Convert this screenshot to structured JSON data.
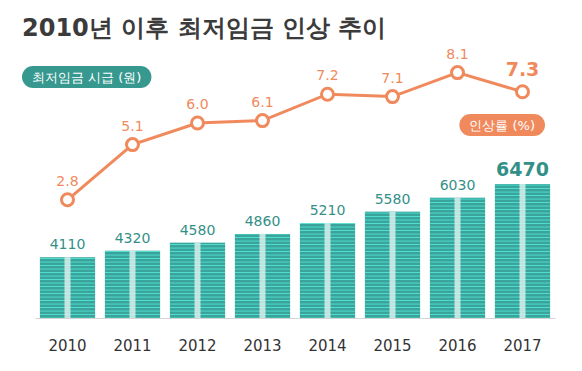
{
  "chart_data": {
    "type": "bar",
    "title": "2010년 이후 최저임금 인상 추이",
    "categories": [
      "2010",
      "2011",
      "2012",
      "2013",
      "2014",
      "2015",
      "2016",
      "2017"
    ],
    "series": [
      {
        "name": "최저임금 시급 (원)",
        "type": "bar",
        "color": "#3aa39a",
        "values": [
          4110,
          4320,
          4580,
          4860,
          5210,
          5580,
          6030,
          6470
        ]
      },
      {
        "name": "인상률 (%)",
        "type": "line",
        "color": "#f08a5d",
        "axis": "y2",
        "marker": "circle",
        "values": [
          2.8,
          5.1,
          6.0,
          6.1,
          7.2,
          7.1,
          8.1,
          7.3
        ],
        "value_labels": [
          "2.8",
          "5.1",
          "6.0",
          "6.1",
          "7.2",
          "7.1",
          "8.1",
          "7.3"
        ]
      }
    ],
    "ylim": [
      2150,
      6600
    ],
    "y2lim": [
      0,
      10
    ],
    "data_labels": true,
    "tick_labels": "x"
  }
}
